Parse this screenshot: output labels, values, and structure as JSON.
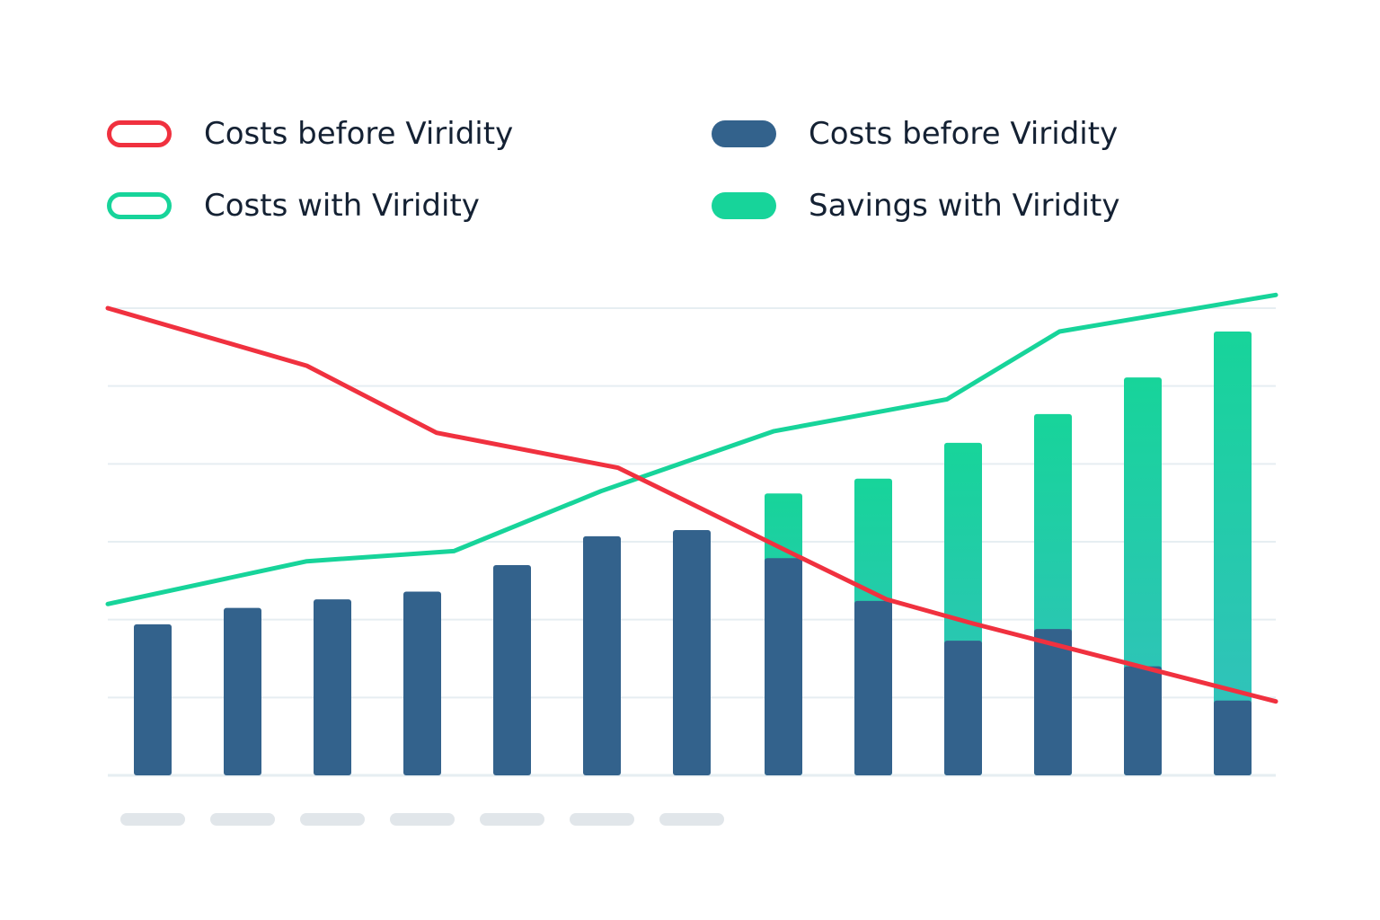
{
  "legend": [
    {
      "label": "Costs before Viridity",
      "style": "outline",
      "color": "#f0313f"
    },
    {
      "label": "Costs with Viridity",
      "style": "outline",
      "color": "#17d49a"
    },
    {
      "label": "Costs before Viridity",
      "style": "filled",
      "color": "#33628c"
    },
    {
      "label": "Savings with Viridity",
      "style": "filled",
      "color": "#17d49a"
    }
  ],
  "chart_data": {
    "type": "bar",
    "title": "",
    "xlabel": "",
    "ylabel": "",
    "ylim": [
      0,
      600
    ],
    "grid": true,
    "legend_position": "top",
    "categories": [
      "",
      "",
      "",
      "",
      "",
      "",
      "",
      "",
      "",
      "",
      "",
      "",
      ""
    ],
    "colors": {
      "bar_cost": "#33628c",
      "bar_savings": "#17d49a",
      "line_before": "#f0313f",
      "line_with": "#17d49a",
      "grid": "#e6eef2",
      "tick_placeholder": "#e1e6ea"
    },
    "series": [
      {
        "name": "Costs before Viridity",
        "kind": "bar",
        "values": [
          194,
          215,
          226,
          236,
          270,
          307,
          315,
          279,
          224,
          173,
          188,
          140,
          96
        ]
      },
      {
        "name": "Savings with Viridity",
        "kind": "bar-stack",
        "values": [
          0,
          0,
          0,
          0,
          0,
          0,
          0,
          83,
          157,
          254,
          276,
          371,
          474
        ]
      },
      {
        "name": "Costs before Viridity",
        "kind": "line",
        "x": [
          0,
          2.3,
          3.8,
          5.9,
          7.0,
          8.0,
          9.0,
          10.0,
          13.5
        ],
        "values": [
          600,
          526,
          440,
          395,
          335,
          280,
          226,
          195,
          95
        ]
      },
      {
        "name": "Costs with Viridity",
        "kind": "line",
        "x": [
          0,
          2.3,
          4.0,
          5.7,
          7.7,
          9.7,
          11.0,
          13.5
        ],
        "values": [
          220,
          275,
          288,
          365,
          442,
          483,
          570,
          617
        ]
      }
    ]
  }
}
